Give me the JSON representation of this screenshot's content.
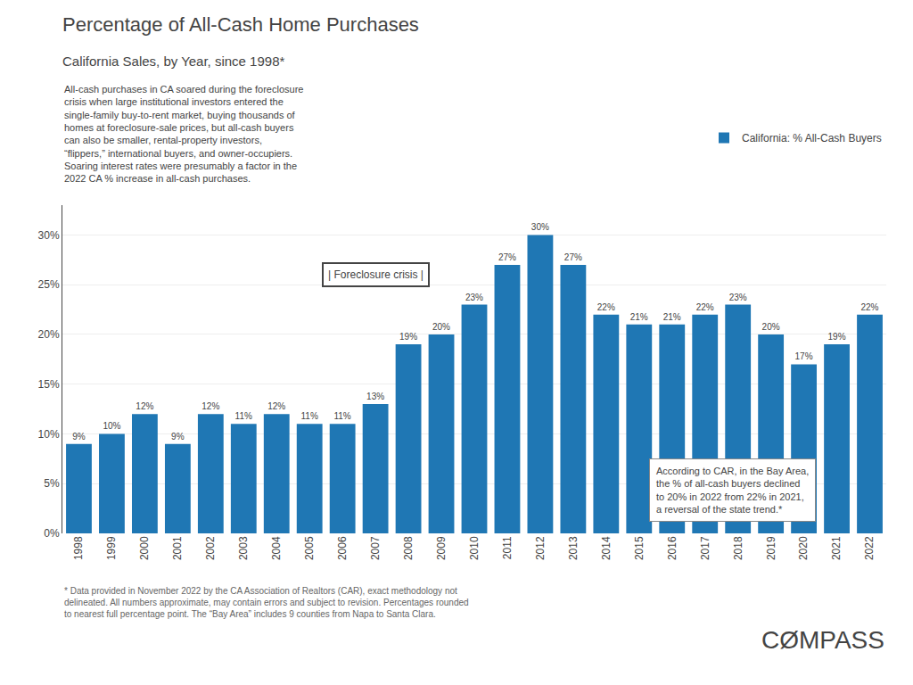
{
  "chart_data": {
    "type": "bar",
    "title": "Percentage of All-Cash Home Purchases",
    "subtitle": "California Sales, by Year, since 1998*",
    "categories": [
      "1998",
      "1999",
      "2000",
      "2001",
      "2002",
      "2003",
      "2004",
      "2005",
      "2006",
      "2007",
      "2008",
      "2009",
      "2010",
      "2011",
      "2012",
      "2013",
      "2014",
      "2015",
      "2016",
      "2017",
      "2018",
      "2019",
      "2020",
      "2021",
      "2022"
    ],
    "series": [
      {
        "name": "California: % All-Cash Buyers",
        "values": [
          9,
          10,
          12,
          9,
          12,
          11,
          12,
          11,
          11,
          13,
          19,
          20,
          23,
          27,
          30,
          27,
          22,
          21,
          21,
          22,
          23,
          20,
          17,
          19,
          22
        ],
        "value_labels": [
          "9%",
          "10%",
          "12%",
          "9%",
          "12%",
          "11%",
          "12%",
          "11%",
          "11%",
          "13%",
          "19%",
          "20%",
          "23%",
          "27%",
          "30%",
          "27%",
          "22%",
          "21%",
          "21%",
          "22%",
          "23%",
          "20%",
          "17%",
          "19%",
          "22%"
        ]
      }
    ],
    "data_labels": true,
    "ylim": [
      0,
      33
    ],
    "yticks": [
      {
        "value": 0,
        "label": "0%"
      },
      {
        "value": 5,
        "label": "5%"
      },
      {
        "value": 10,
        "label": "10%"
      },
      {
        "value": 15,
        "label": "15%"
      },
      {
        "value": 20,
        "label": "20%"
      },
      {
        "value": 25,
        "label": "25%"
      },
      {
        "value": 30,
        "label": "30%"
      }
    ],
    "grid": true,
    "legend": "upper right",
    "annotations": [
      "All-cash purchases in CA soared during the foreclosure\ncrisis when large institutional investors entered the\nsingle-family buy-to-rent market, buying thousands of\nhomes at foreclosure-sale prices, but all-cash buyers\ncan also be smaller, rental-property investors,\n“flippers,” international buyers, and owner-occupiers.\nSoaring interest rates were presumably a factor in the\n2022 CA % increase in all-cash purchases.",
      "| Foreclosure crisis |",
      "According to CAR, in the Bay Area,\nthe % of all-cash buyers declined\nto 20% in 2022 from 22% in 2021,\na reversal of the state trend.*",
      "* Data provided in November 2022 by the CA Association of Realtors (CAR), exact methodology not\ndelineated. All numbers approximate, may contain errors and subject to revision. Percentages rounded\nto nearest full percentage point. The “Bay Area” includes 9 counties from Napa to Santa Clara.",
      "CØMPASS"
    ]
  }
}
